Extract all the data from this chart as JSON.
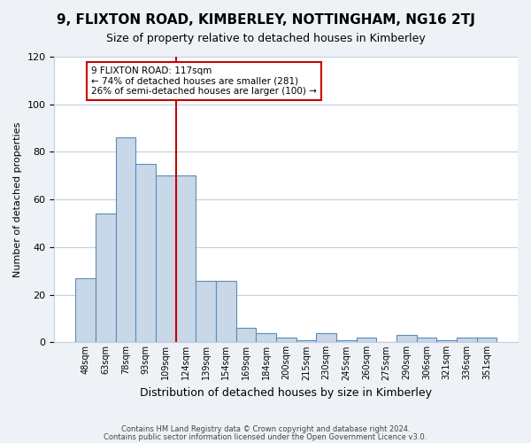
{
  "title": "9, FLIXTON ROAD, KIMBERLEY, NOTTINGHAM, NG16 2TJ",
  "subtitle": "Size of property relative to detached houses in Kimberley",
  "xlabel": "Distribution of detached houses by size in Kimberley",
  "ylabel": "Number of detached properties",
  "bar_labels": [
    "48sqm",
    "63sqm",
    "78sqm",
    "93sqm",
    "109sqm",
    "124sqm",
    "139sqm",
    "154sqm",
    "169sqm",
    "184sqm",
    "200sqm",
    "215sqm",
    "230sqm",
    "245sqm",
    "260sqm",
    "275sqm",
    "290sqm",
    "306sqm",
    "321sqm",
    "336sqm",
    "351sqm"
  ],
  "bar_values": [
    27,
    54,
    86,
    75,
    70,
    70,
    26,
    26,
    6,
    4,
    2,
    1,
    4,
    1,
    2,
    0,
    3,
    2,
    1,
    2,
    2
  ],
  "bar_color": "#c8d8e8",
  "bar_edge_color": "#5b8db8",
  "vline_color": "#cc0000",
  "vline_pos": 4.5,
  "ylim": [
    0,
    120
  ],
  "yticks": [
    0,
    20,
    40,
    60,
    80,
    100,
    120
  ],
  "annotation_title": "9 FLIXTON ROAD: 117sqm",
  "annotation_line1": "← 74% of detached houses are smaller (281)",
  "annotation_line2": "26% of semi-detached houses are larger (100) →",
  "annotation_box_color": "#cc0000",
  "footer_line1": "Contains HM Land Registry data © Crown copyright and database right 2024.",
  "footer_line2": "Contains public sector information licensed under the Open Government Licence v3.0.",
  "bg_color": "#eef2f7",
  "plot_bg_color": "#ffffff",
  "grid_color": "#c0cfe0"
}
